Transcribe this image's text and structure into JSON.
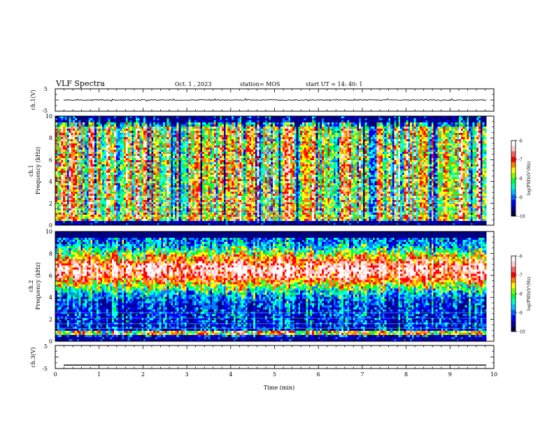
{
  "header": {
    "title": "VLF Spectra",
    "date": "Oct. 1 , 2023",
    "station": "station= MOS",
    "start": "start UT = 14: 40: 1"
  },
  "colors": {
    "scale": [
      "#000080",
      "#0000ff",
      "#0080ff",
      "#00ffff",
      "#00ff40",
      "#ffff00",
      "#ff8000",
      "#ff0000",
      "#ffc0c0",
      "#ffffff"
    ]
  },
  "chart_data": [
    {
      "type": "line",
      "panel": "ch1-waveform",
      "ylabel": "ch.1(V)",
      "ylim": [
        -5,
        5
      ],
      "yticks": [
        "5",
        "-5"
      ],
      "xlim": [
        0,
        10
      ],
      "baseline": 0,
      "noise": "small"
    },
    {
      "type": "heatmap",
      "panel": "ch1-spectrogram",
      "ylabel_top": "ch.1",
      "ylabel": "Frequency (kHz)",
      "ylim": [
        0,
        10
      ],
      "yticks": [
        "0",
        "2",
        "4",
        "6",
        "8",
        "10"
      ],
      "xlim": [
        0,
        10
      ],
      "data_end_min": 9.83,
      "colorbar": {
        "label": "log(PSD)(V²/Hz)",
        "ticks": [
          "-6",
          "-7",
          "-8",
          "-9",
          "-10"
        ],
        "range": [
          -10,
          -6
        ]
      },
      "regime": "sferic"
    },
    {
      "type": "heatmap",
      "panel": "ch2-spectrogram",
      "ylabel_top": "ch.2",
      "ylabel": "Frequency (kHz)",
      "ylim": [
        0,
        10
      ],
      "yticks": [
        "0",
        "2",
        "4",
        "6",
        "8",
        "10"
      ],
      "xlim": [
        0,
        10
      ],
      "data_end_min": 9.83,
      "colorbar": {
        "label": "log(PSD)(V²/Hz)",
        "ticks": [
          "-6",
          "-7",
          "-8",
          "-9",
          "-10"
        ],
        "range": [
          -10,
          -6
        ]
      },
      "regime": "band"
    },
    {
      "type": "line",
      "panel": "ch3-waveform",
      "ylabel": "ch.3(V)",
      "ylim": [
        -5,
        5
      ],
      "yticks": [
        "5",
        "-5"
      ],
      "xlim": [
        0,
        10
      ],
      "baseline": -3.5,
      "noise": "none",
      "xlabel": "Time (min)",
      "xticks": [
        "0",
        "1",
        "2",
        "3",
        "4",
        "5",
        "6",
        "7",
        "8",
        "9",
        "10"
      ]
    }
  ]
}
